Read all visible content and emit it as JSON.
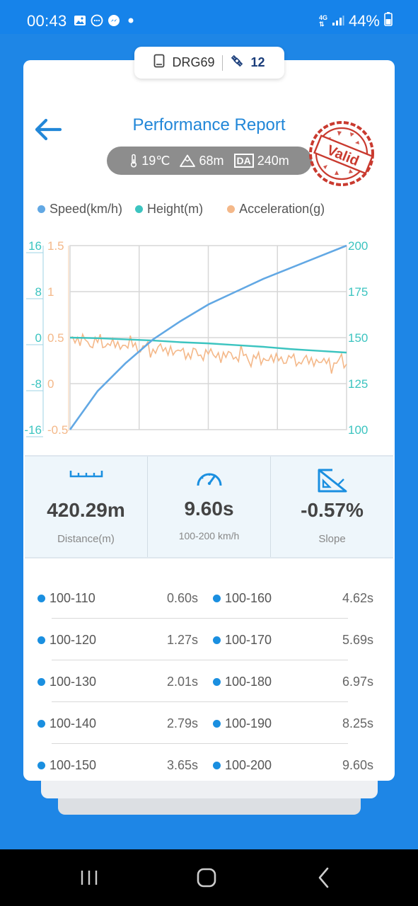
{
  "status_bar": {
    "time": "00:43",
    "network": "4G",
    "battery": "44%"
  },
  "device": {
    "name": "DRG69",
    "satellites": "12"
  },
  "header": {
    "title": "Performance Report",
    "stamp_text": "Valid"
  },
  "conditions": {
    "temperature": "19℃",
    "altitude": "68m",
    "da_label": "DA",
    "density_altitude": "240m"
  },
  "legend": [
    {
      "label": "Speed(km/h)",
      "color": "#62a8e4"
    },
    {
      "label": "Height(m)",
      "color": "#3cc4c0"
    },
    {
      "label": "Acceleration(g)",
      "color": "#f4b889"
    }
  ],
  "chart_data": {
    "type": "line",
    "left_axis_height": {
      "ticks": [
        "16",
        "8",
        "0",
        "-8",
        "-16"
      ],
      "color": "#3cc4c0"
    },
    "left_axis_accel": {
      "ticks": [
        "1.5",
        "1",
        "0.5",
        "0",
        "-0.5"
      ],
      "color": "#f4b889"
    },
    "right_axis_speed": {
      "ticks": [
        "200",
        "175",
        "150",
        "125",
        "100"
      ],
      "color": "#3cc4c0"
    },
    "ylim_speed": [
      100,
      200
    ],
    "ylim_height": [
      -16,
      16
    ],
    "ylim_accel": [
      -0.5,
      1.5
    ],
    "x": [
      0,
      1,
      2,
      3,
      4,
      5,
      6,
      7,
      8,
      9,
      10
    ],
    "series": [
      {
        "name": "Speed(km/h)",
        "color": "#62a8e4",
        "values": [
          100,
          121,
          136,
          149,
          159,
          168,
          175,
          182,
          188,
          194,
          200
        ]
      },
      {
        "name": "Height(m)",
        "color": "#3cc4c0",
        "values": [
          0,
          -0.1,
          -0.3,
          -0.5,
          -0.8,
          -1,
          -1.3,
          -1.6,
          -2,
          -2.3,
          -2.6
        ]
      },
      {
        "name": "Acceleration(g)",
        "color": "#f4b889",
        "values": [
          0.5,
          0.44,
          0.42,
          0.38,
          0.34,
          0.32,
          0.3,
          0.27,
          0.26,
          0.24,
          0.22
        ]
      }
    ]
  },
  "stats": [
    {
      "value": "420.29m",
      "label": "Distance(m)",
      "icon": "ruler-icon"
    },
    {
      "value": "9.60s",
      "label": "100-200 km/h",
      "icon": "speedometer-icon"
    },
    {
      "value": "-0.57%",
      "label": "Slope",
      "icon": "slope-icon"
    }
  ],
  "splits": [
    {
      "a_range": "100-110",
      "a_time": "0.60s",
      "b_range": "100-160",
      "b_time": "4.62s"
    },
    {
      "a_range": "100-120",
      "a_time": "1.27s",
      "b_range": "100-170",
      "b_time": "5.69s"
    },
    {
      "a_range": "100-130",
      "a_time": "2.01s",
      "b_range": "100-180",
      "b_time": "6.97s"
    },
    {
      "a_range": "100-140",
      "a_time": "2.79s",
      "b_range": "100-190",
      "b_time": "8.25s"
    },
    {
      "a_range": "100-150",
      "a_time": "3.65s",
      "b_range": "100-200",
      "b_time": "9.60s"
    }
  ]
}
